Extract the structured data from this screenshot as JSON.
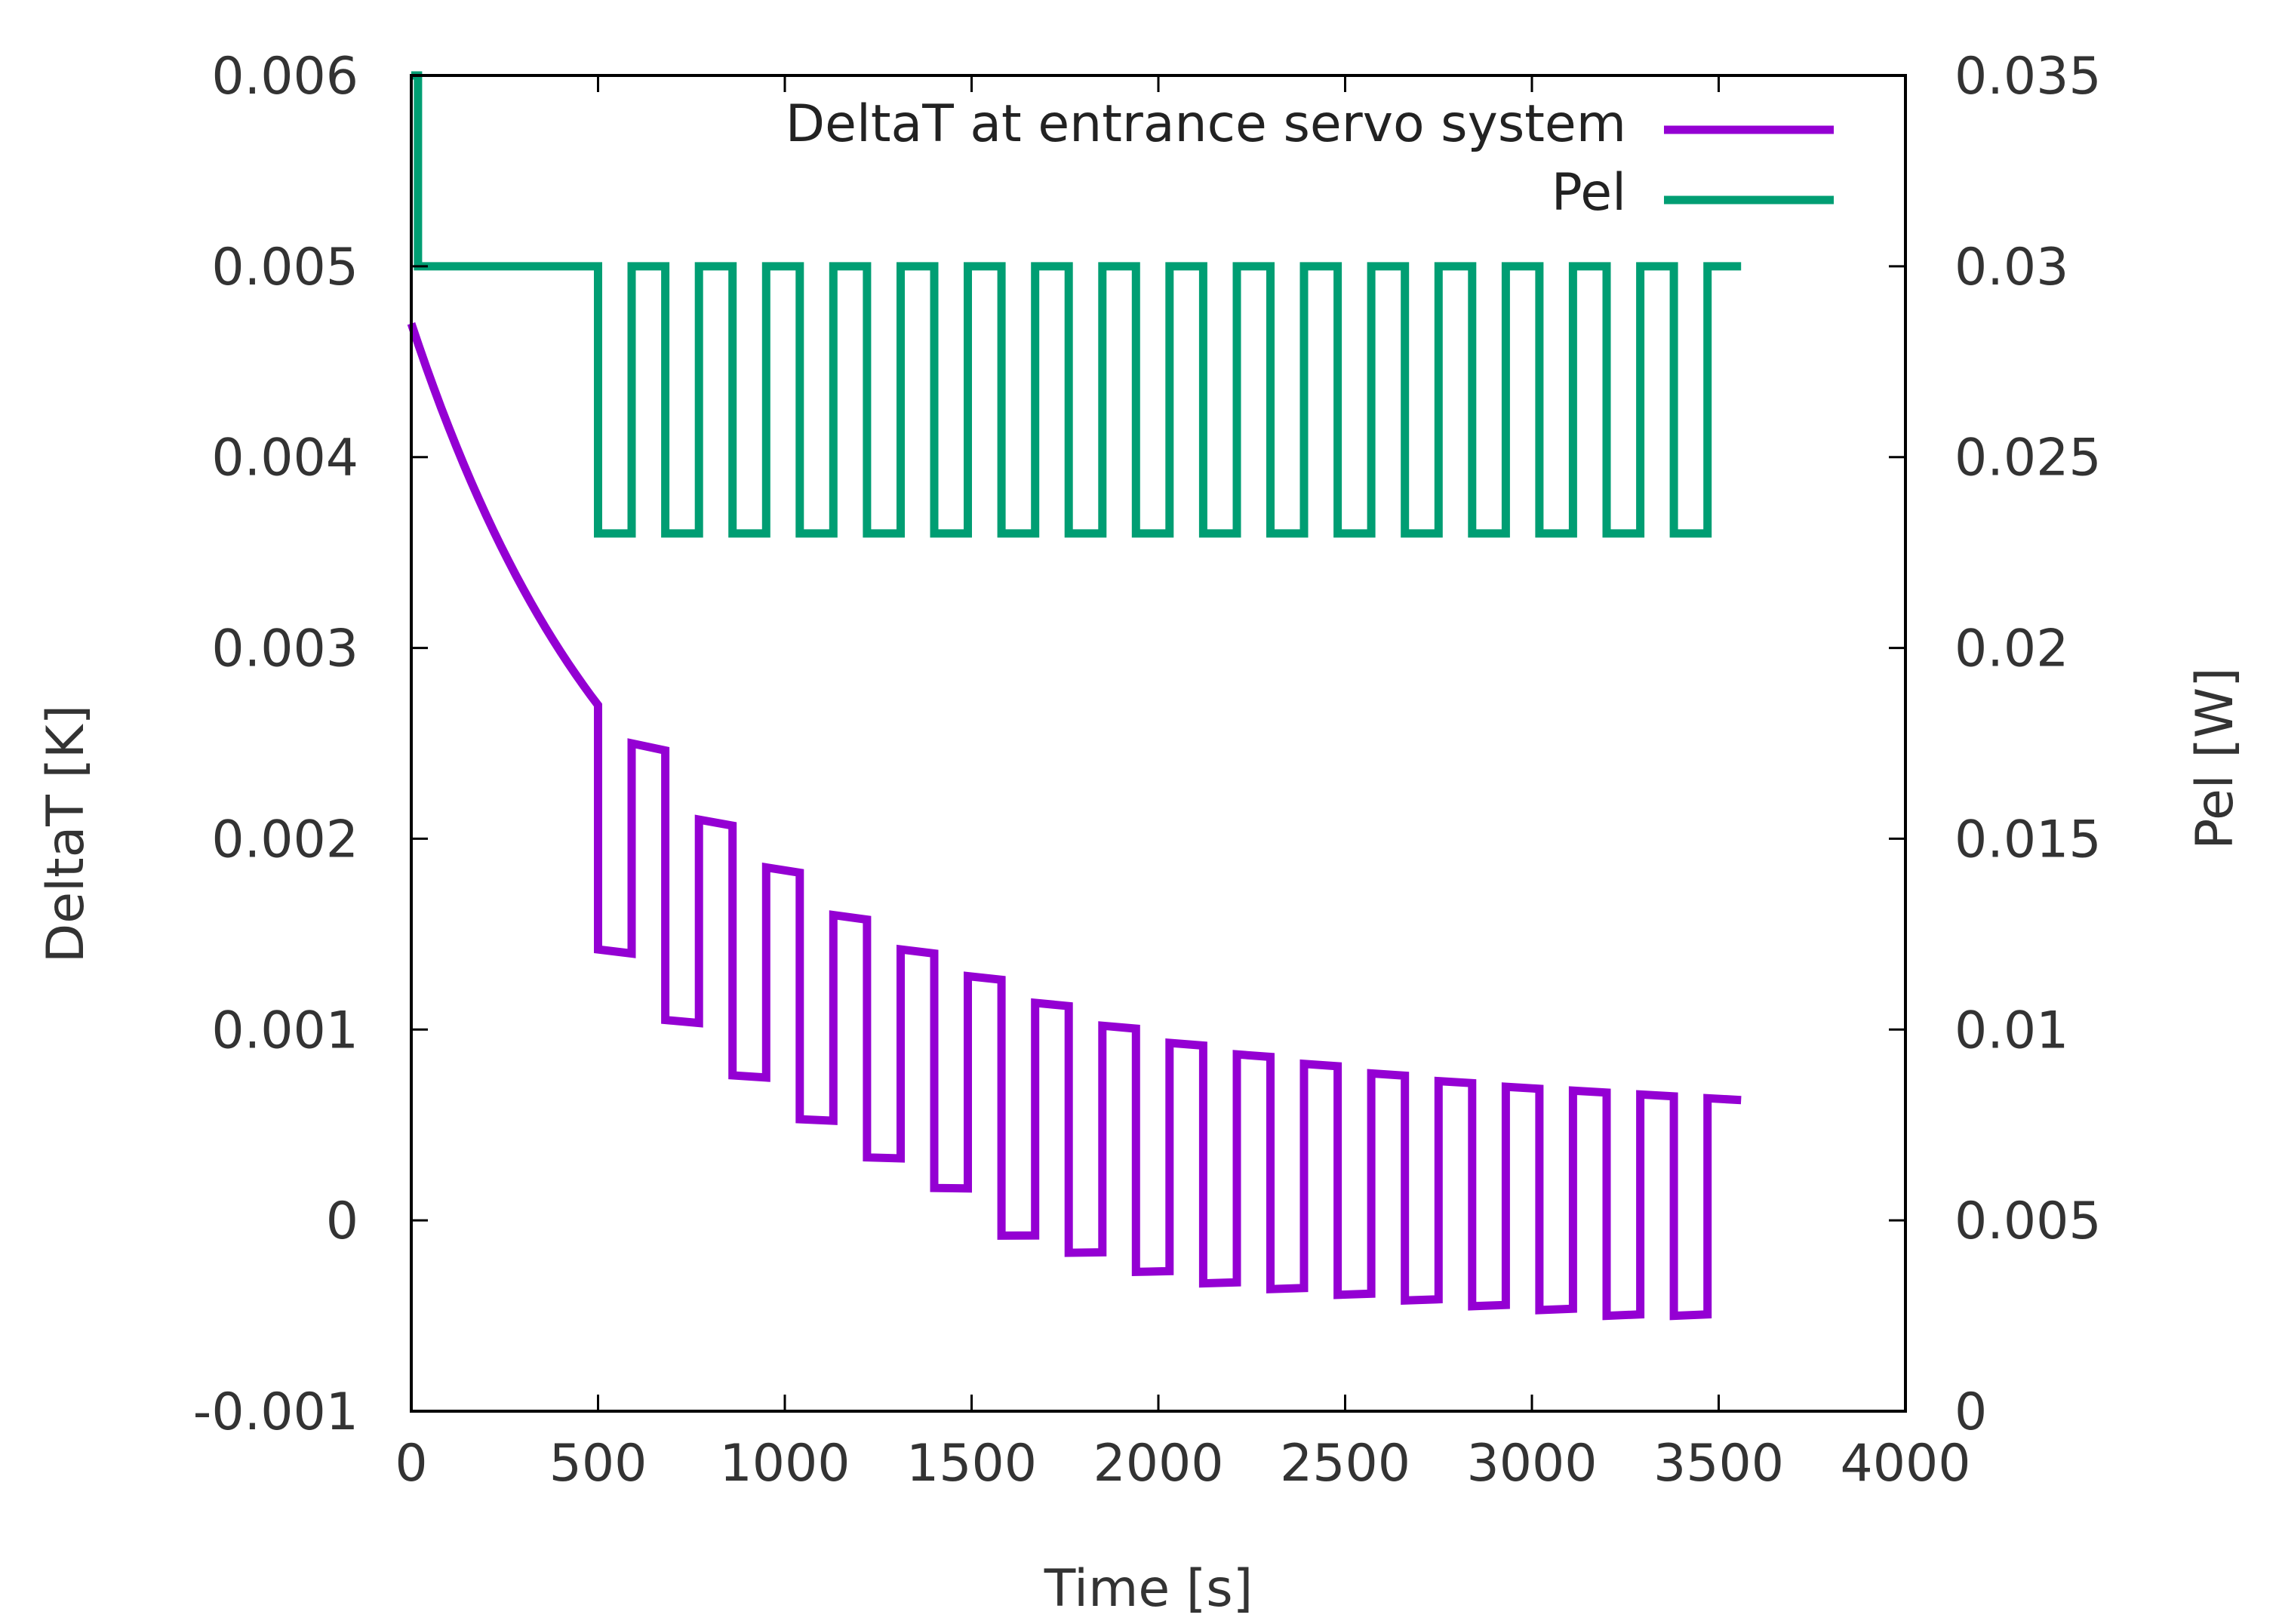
{
  "chart_data": {
    "type": "line",
    "title": "",
    "xlabel": "Time [s]",
    "ylabel": "DeltaT [K]",
    "y2label": "Pel [W]",
    "xlim": [
      0,
      4000
    ],
    "ylim": [
      -0.001,
      0.006
    ],
    "y2lim": [
      0,
      0.035
    ],
    "xticks": [
      0,
      500,
      1000,
      1500,
      2000,
      2500,
      3000,
      3500,
      4000
    ],
    "xtick_labels": [
      "0",
      "500",
      "1000",
      "1500",
      "2000",
      "2500",
      "3000",
      "3500",
      "4000"
    ],
    "yticks": [
      -0.001,
      0,
      0.001,
      0.002,
      0.003,
      0.004,
      0.005,
      0.006
    ],
    "ytick_labels": [
      "-0.001",
      "0",
      "0.001",
      "0.002",
      "0.003",
      "0.004",
      "0.005",
      "0.006"
    ],
    "y2ticks": [
      0,
      0.005,
      0.01,
      0.015,
      0.02,
      0.025,
      0.03,
      0.035
    ],
    "y2tick_labels": [
      "0",
      "0.005",
      "0.01",
      "0.015",
      "0.02",
      "0.025",
      "0.03",
      "0.035"
    ],
    "grid": false,
    "legend_position": "top-right",
    "cycle_period_s": 180,
    "cycle_start_s": 500,
    "cycle_end_s": 3600,
    "series": [
      {
        "name": "DeltaT at entrance servo system",
        "axis": "left",
        "color": "#9400D3",
        "initial_value": 0.0047,
        "value_at_500s": 0.0027,
        "upper_values": [
          0.0025,
          0.0021,
          0.00185,
          0.0016,
          0.00142,
          0.00128,
          0.00114,
          0.00102,
          0.00093,
          0.00087,
          0.00082,
          0.00077,
          0.00073,
          0.0007,
          0.00068,
          0.00066,
          0.00064
        ],
        "lower_values": [
          0.00142,
          0.00105,
          0.00076,
          0.00053,
          0.00033,
          0.00017,
          -8e-05,
          -0.00017,
          -0.00027,
          -0.00033,
          -0.00036,
          -0.00039,
          -0.00042,
          -0.00045,
          -0.00047,
          -0.0005,
          -0.0005
        ]
      },
      {
        "name": "Pel",
        "axis": "right",
        "color": "#009E73",
        "initial_value": 0.035,
        "high_value": 0.03,
        "low_value": 0.023
      }
    ]
  }
}
